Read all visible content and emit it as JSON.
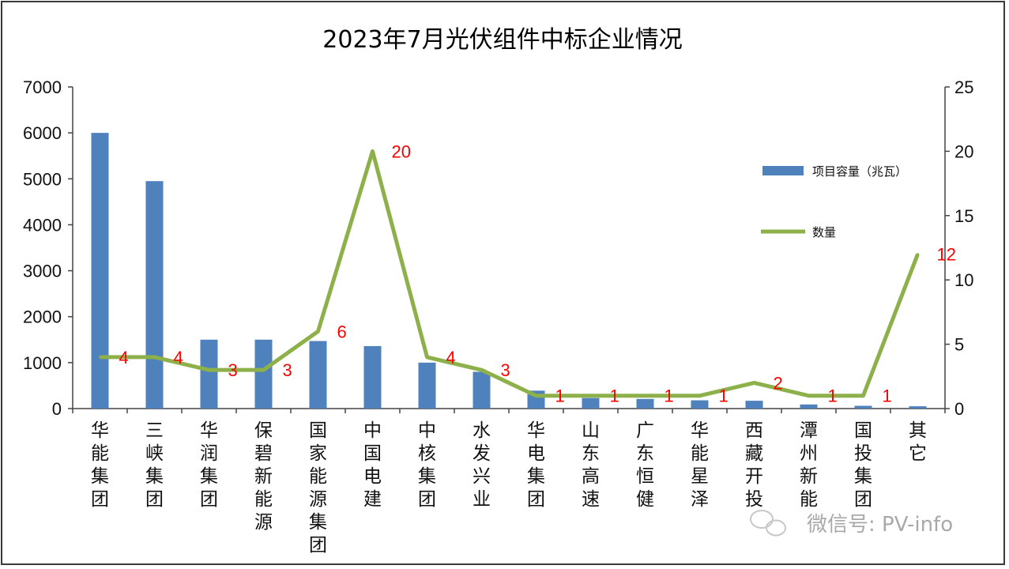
{
  "chart_data": {
    "type": "bar+line",
    "title": "2023年7月光伏组件中标企业情况",
    "categories": [
      "华能集团",
      "三峡集团",
      "华润集团",
      "保碧新能源",
      "国家能源集团",
      "中国电建",
      "中核集团",
      "水发兴业",
      "华电集团",
      "山东高速",
      "广东恒健",
      "华能星泽",
      "西藏开投",
      "潭州新能",
      "国投集团",
      "其它"
    ],
    "series": [
      {
        "name": "项目容量（兆瓦）",
        "type": "bar",
        "axis": "left",
        "color": "#4f81bd",
        "values": [
          6000,
          4950,
          1500,
          1500,
          1470,
          1360,
          1000,
          800,
          390,
          230,
          210,
          180,
          170,
          90,
          60,
          50
        ]
      },
      {
        "name": "数量",
        "type": "line",
        "axis": "right",
        "color": "#8db04a",
        "values": [
          4,
          4,
          3,
          3,
          6,
          20,
          4,
          3,
          1,
          1,
          1,
          1,
          2,
          1,
          1,
          12
        ]
      }
    ],
    "data_labels": [
      "4",
      "4",
      "3",
      "3",
      "6",
      "20",
      "4",
      "3",
      "1",
      "1",
      "1",
      "1",
      "2",
      "1",
      "1",
      "12"
    ],
    "y_left": {
      "min": 0,
      "max": 7000,
      "ticks": [
        "0",
        "1000",
        "2000",
        "3000",
        "4000",
        "5000",
        "6000",
        "7000"
      ]
    },
    "y_right": {
      "min": 0,
      "max": 25,
      "ticks": [
        "0",
        "5",
        "10",
        "15",
        "20",
        "25"
      ]
    },
    "legend": {
      "position": "right",
      "bar_label": "项目容量（兆瓦）",
      "line_label": "数量"
    }
  },
  "watermark": "微信号: PV-info"
}
